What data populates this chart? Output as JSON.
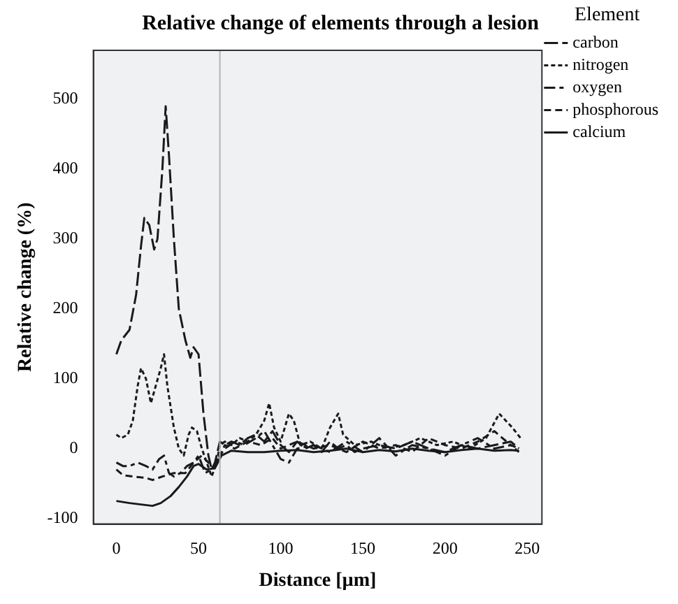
{
  "chart_data": {
    "type": "line",
    "title": "Relative change of elements through a lesion",
    "xlabel": "Distance [µm]",
    "ylabel": "Relative change (%)",
    "legend_title": "Element",
    "legend": "right",
    "grid": false,
    "marker": "none",
    "xlim": [
      -14,
      259
    ],
    "ylim": [
      -108,
      570
    ],
    "xticks": [
      0,
      50,
      100,
      150,
      200,
      250
    ],
    "yticks": [
      -100,
      0,
      100,
      200,
      300,
      400,
      500
    ],
    "ref_lines": [
      {
        "axis": "x",
        "value": 63,
        "color": "#b4b4b4"
      }
    ],
    "series": [
      {
        "name": "carbon",
        "color": "#1a1a1a",
        "line_style": "longdash",
        "x": [
          0,
          3,
          8,
          12,
          15,
          17,
          20,
          23,
          25,
          28,
          30,
          32,
          35,
          38,
          42,
          45,
          47,
          50,
          53,
          56,
          58,
          60,
          63,
          66,
          70,
          75,
          80,
          85,
          90,
          95,
          100,
          105,
          110,
          115,
          120,
          125,
          130,
          135,
          140,
          145,
          150,
          160,
          170,
          180,
          190,
          200,
          210,
          220,
          230,
          240,
          245
        ],
        "values": [
          135,
          155,
          170,
          220,
          290,
          330,
          320,
          285,
          300,
          400,
          490,
          420,
          300,
          200,
          155,
          130,
          145,
          135,
          50,
          -10,
          -30,
          -20,
          10,
          5,
          10,
          5,
          15,
          20,
          10,
          25,
          5,
          -5,
          10,
          0,
          5,
          -5,
          10,
          0,
          5,
          -5,
          0,
          5,
          0,
          10,
          0,
          -5,
          5,
          0,
          5,
          10,
          0
        ]
      },
      {
        "name": "nitrogen",
        "color": "#1a1a1a",
        "line_style": "dotted",
        "x": [
          0,
          3,
          7,
          10,
          13,
          15,
          18,
          21,
          24,
          27,
          29,
          31,
          35,
          38,
          41,
          44,
          46,
          49,
          52,
          55,
          58,
          61,
          63,
          66,
          70,
          75,
          80,
          85,
          90,
          93,
          96,
          100,
          105,
          108,
          112,
          118,
          125,
          130,
          135,
          138,
          145,
          155,
          165,
          175,
          185,
          195,
          205,
          215,
          225,
          233,
          237,
          241,
          246
        ],
        "values": [
          20,
          15,
          20,
          40,
          90,
          115,
          100,
          65,
          90,
          115,
          135,
          90,
          30,
          0,
          -10,
          20,
          30,
          25,
          0,
          -20,
          -40,
          -20,
          5,
          10,
          5,
          15,
          10,
          20,
          40,
          65,
          30,
          10,
          50,
          40,
          5,
          10,
          0,
          30,
          50,
          20,
          5,
          10,
          0,
          5,
          15,
          5,
          10,
          0,
          15,
          50,
          40,
          30,
          15
        ]
      },
      {
        "name": "oxygen",
        "color": "#1a1a1a",
        "line_style": "dashdot",
        "x": [
          0,
          4,
          8,
          13,
          18,
          22,
          26,
          29,
          32,
          35,
          39,
          43,
          47,
          50,
          54,
          58,
          63,
          66,
          72,
          78,
          85,
          90,
          95,
          100,
          105,
          110,
          120,
          130,
          140,
          150,
          160,
          170,
          180,
          190,
          200,
          210,
          220,
          230,
          240,
          245
        ],
        "values": [
          -20,
          -25,
          -25,
          -20,
          -25,
          -30,
          -15,
          -10,
          -35,
          -40,
          -35,
          -25,
          -20,
          -10,
          -35,
          -30,
          -10,
          0,
          10,
          5,
          15,
          25,
          5,
          -15,
          -20,
          0,
          5,
          -5,
          10,
          -5,
          15,
          -10,
          5,
          0,
          -10,
          5,
          15,
          0,
          5,
          -5
        ]
      },
      {
        "name": "phosphorous",
        "color": "#1a1a1a",
        "line_style": "dashed",
        "x": [
          0,
          4,
          10,
          18,
          22,
          28,
          35,
          42,
          47,
          52,
          56,
          60,
          63,
          66,
          72,
          80,
          88,
          95,
          100,
          110,
          120,
          130,
          140,
          150,
          160,
          170,
          180,
          190,
          200,
          210,
          220,
          230,
          240,
          245
        ],
        "values": [
          -30,
          -38,
          -40,
          -42,
          -45,
          -40,
          -35,
          -35,
          -20,
          -10,
          -20,
          -25,
          -10,
          5,
          0,
          10,
          5,
          15,
          0,
          10,
          0,
          5,
          -5,
          10,
          0,
          5,
          -5,
          15,
          5,
          0,
          10,
          25,
          5,
          0
        ]
      },
      {
        "name": "calcium",
        "color": "#1a1a1a",
        "line_style": "solid",
        "x": [
          0,
          8,
          15,
          22,
          27,
          33,
          38,
          43,
          47,
          50,
          55,
          60,
          64,
          70,
          80,
          90,
          100,
          110,
          120,
          130,
          140,
          150,
          160,
          170,
          180,
          190,
          200,
          210,
          220,
          230,
          240,
          245
        ],
        "values": [
          -75,
          -78,
          -80,
          -82,
          -78,
          -68,
          -55,
          -40,
          -25,
          -22,
          -30,
          -28,
          -10,
          -3,
          -5,
          -5,
          -3,
          -2,
          -5,
          -3,
          0,
          -5,
          -2,
          -4,
          0,
          -3,
          -5,
          -2,
          0,
          -3,
          -2,
          -3
        ]
      }
    ]
  }
}
